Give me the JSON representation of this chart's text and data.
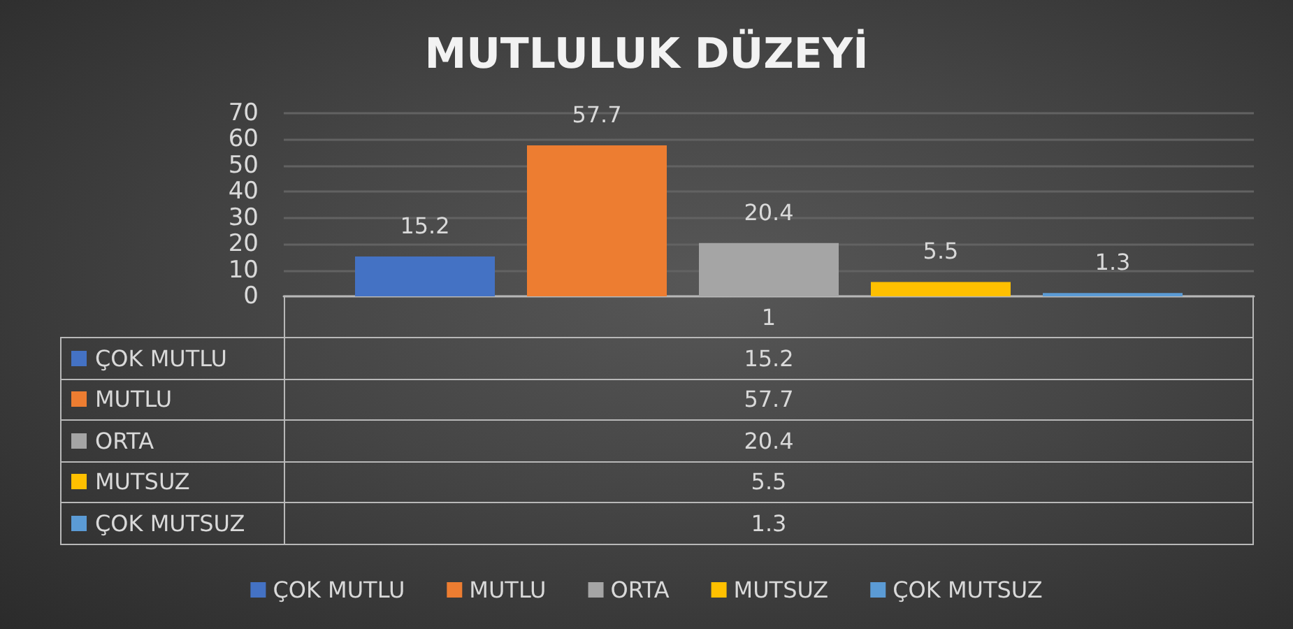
{
  "chart_data": {
    "type": "bar",
    "title": "MUTLULUK DÜZEYİ",
    "categories": [
      "1"
    ],
    "series": [
      {
        "name": "ÇOK MUTLU",
        "color": "#4472c4",
        "values": [
          15.2
        ],
        "value_labels": [
          "15.2"
        ]
      },
      {
        "name": "MUTLU",
        "color": "#ed7d31",
        "values": [
          57.7
        ],
        "value_labels": [
          "57.7"
        ]
      },
      {
        "name": "ORTA",
        "color": "#a5a5a5",
        "values": [
          20.4
        ],
        "value_labels": [
          "20.4"
        ]
      },
      {
        "name": "MUTSUZ",
        "color": "#ffc000",
        "values": [
          5.5
        ],
        "value_labels": [
          "5.5"
        ]
      },
      {
        "name": "ÇOK MUTSUZ",
        "color": "#5b9bd5",
        "values": [
          1.3
        ],
        "value_labels": [
          "1.3"
        ]
      }
    ],
    "ylim": [
      0,
      70
    ],
    "yticks": [
      0,
      10,
      20,
      30,
      40,
      50,
      60,
      70
    ],
    "grid": "y",
    "legend": "bottom",
    "data_labels": true
  }
}
